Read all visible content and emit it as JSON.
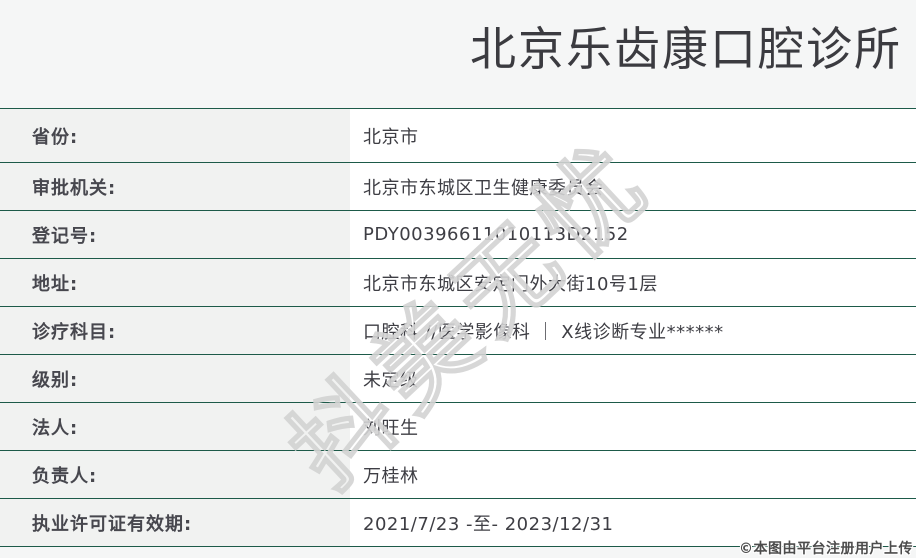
{
  "header": {
    "title": "北京乐齿康口腔诊所"
  },
  "table": {
    "rows": [
      {
        "label": "省份:",
        "value": "北京市"
      },
      {
        "label": "审批机关:",
        "value": "北京市东城区卫生健康委员会"
      },
      {
        "label": "登记号:",
        "value": "PDY00396611010113D2152"
      },
      {
        "label": "地址:",
        "value": "北京市东城区安定门外大街10号1层"
      },
      {
        "label": "诊疗科目:",
        "value": "口腔科 //医学影像科 ｜ X线诊断专业******"
      },
      {
        "label": "级别:",
        "value": "未定级"
      },
      {
        "label": "法人:",
        "value": "刘旺生"
      },
      {
        "label": "负责人:",
        "value": "万桂林"
      },
      {
        "label": "执业许可证有效期:",
        "value": "2021/7/23 -至- 2023/12/31"
      }
    ]
  },
  "watermark": {
    "text": "抖美无忧"
  },
  "footer": {
    "copyright": "©本图由平台注册用户上传"
  },
  "colors": {
    "divider": "#1d5a49",
    "page_bg": "#f5f6f6",
    "label_bg": "#f1f2f1",
    "value_bg": "#ffffff",
    "watermark": "#d3d3d3"
  }
}
